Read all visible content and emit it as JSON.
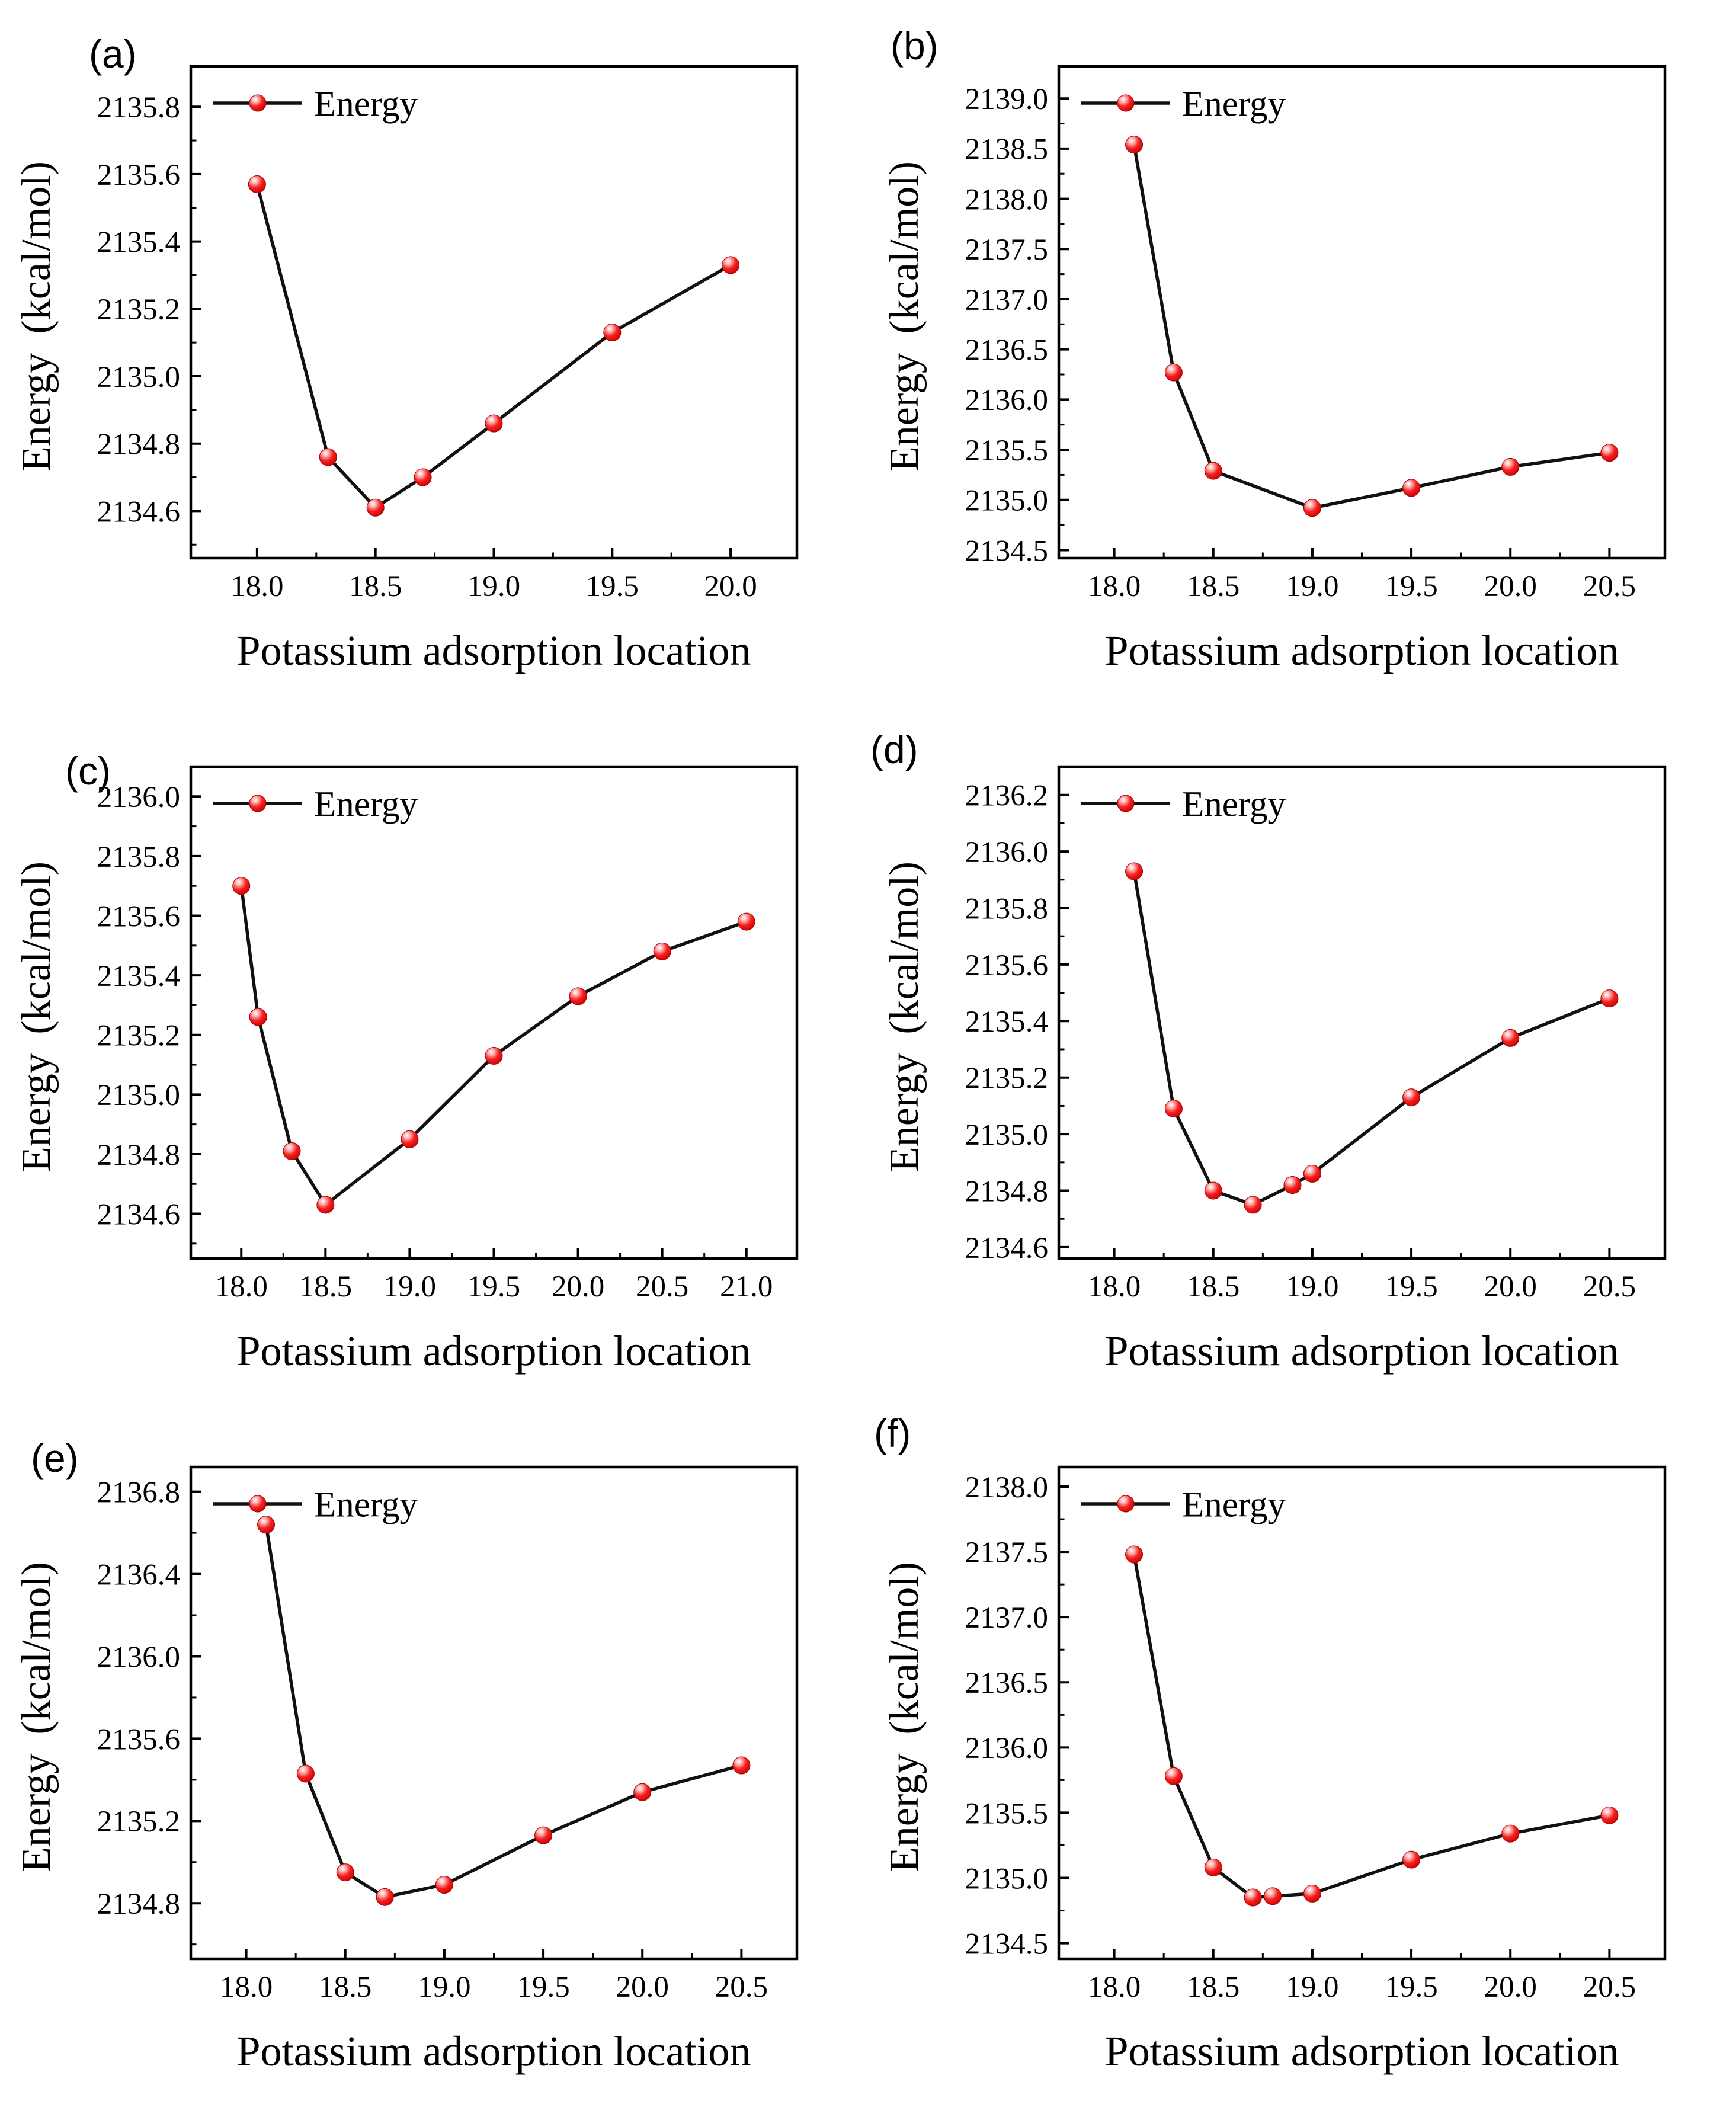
{
  "colors": {
    "marker_fill": "#f52020",
    "marker_edge": "#a30000",
    "line": "#111111",
    "frame": "#000000",
    "text": "#000000"
  },
  "chart_data": [
    {
      "panel_label": "(a)",
      "type": "line",
      "xlabel": "Potassium adsorption location",
      "ylabel": "Energy （kcal/mol）",
      "legend_label": "Energy",
      "legend_position": "top-left",
      "grid": false,
      "series": [
        {
          "name": "Energy",
          "x": [
            18.0,
            18.3,
            18.5,
            18.7,
            19.0,
            19.5,
            20.0
          ],
          "y": [
            2135.57,
            2134.76,
            2134.61,
            2134.7,
            2134.86,
            2135.13,
            2135.33
          ]
        }
      ],
      "x_ticks": [
        18.0,
        18.5,
        19.0,
        19.5,
        20.0
      ],
      "x_tick_labels": [
        "18.0",
        "18.5",
        "19.0",
        "19.5",
        "20.0"
      ],
      "y_ticks": [
        2134.6,
        2134.8,
        2135.0,
        2135.2,
        2135.4,
        2135.6,
        2135.8
      ],
      "y_tick_labels": [
        "2134.6",
        "2134.8",
        "2135.0",
        "2135.2",
        "2135.4",
        "2135.6",
        "2135.8"
      ],
      "xlim": [
        17.72,
        20.28
      ],
      "ylim": [
        2134.46,
        2135.92
      ]
    },
    {
      "panel_label": "(b)",
      "type": "line",
      "xlabel": "Potassium adsorption location",
      "ylabel": "Energy （kcal/mol）",
      "legend_label": "Energy",
      "legend_position": "top-left",
      "grid": false,
      "series": [
        {
          "name": "Energy",
          "x": [
            18.1,
            18.3,
            18.5,
            19.0,
            19.5,
            20.0,
            20.5
          ],
          "y": [
            2138.54,
            2136.27,
            2135.29,
            2134.92,
            2135.12,
            2135.33,
            2135.47
          ]
        }
      ],
      "x_ticks": [
        18.0,
        18.5,
        19.0,
        19.5,
        20.0,
        20.5
      ],
      "x_tick_labels": [
        "18.0",
        "18.5",
        "19.0",
        "19.5",
        "20.0",
        "20.5"
      ],
      "y_ticks": [
        2134.5,
        2135.0,
        2135.5,
        2136.0,
        2136.5,
        2137.0,
        2137.5,
        2138.0,
        2138.5,
        2139.0
      ],
      "y_tick_labels": [
        "2134.5",
        "2135.0",
        "2135.5",
        "2136.0",
        "2136.5",
        "2137.0",
        "2137.5",
        "2138.0",
        "2138.5",
        "2139.0"
      ],
      "xlim": [
        17.72,
        20.78
      ],
      "ylim": [
        2134.42,
        2139.32
      ]
    },
    {
      "panel_label": "(c)",
      "type": "line",
      "xlabel": "Potassium adsorption location",
      "ylabel": "Energy （kcal/mol）",
      "legend_label": "Energy",
      "legend_position": "top-left",
      "grid": false,
      "series": [
        {
          "name": "Energy",
          "x": [
            18.0,
            18.1,
            18.3,
            18.5,
            19.0,
            19.5,
            20.0,
            20.5,
            21.0
          ],
          "y": [
            2135.7,
            2135.26,
            2134.81,
            2134.63,
            2134.85,
            2135.13,
            2135.33,
            2135.48,
            2135.58
          ]
        }
      ],
      "x_ticks": [
        18.0,
        18.5,
        19.0,
        19.5,
        20.0,
        20.5,
        21.0
      ],
      "x_tick_labels": [
        "18.0",
        "18.5",
        "19.0",
        "19.5",
        "20.0",
        "20.5",
        "21.0"
      ],
      "y_ticks": [
        2134.6,
        2134.8,
        2135.0,
        2135.2,
        2135.4,
        2135.6,
        2135.8,
        2136.0
      ],
      "y_tick_labels": [
        "2134.6",
        "2134.8",
        "2135.0",
        "2135.2",
        "2135.4",
        "2135.6",
        "2135.8",
        "2136.0"
      ],
      "xlim": [
        17.7,
        21.3
      ],
      "ylim": [
        2134.45,
        2136.1
      ]
    },
    {
      "panel_label": "(d)",
      "type": "line",
      "xlabel": "Potassium adsorption location",
      "ylabel": "Energy （kcal/mol）",
      "legend_label": "Energy",
      "legend_position": "top-left",
      "grid": false,
      "series": [
        {
          "name": "Energy",
          "x": [
            18.1,
            18.3,
            18.5,
            18.7,
            18.9,
            19.0,
            19.5,
            20.0,
            20.5
          ],
          "y": [
            2135.93,
            2135.09,
            2134.8,
            2134.75,
            2134.82,
            2134.86,
            2135.13,
            2135.34,
            2135.48
          ]
        }
      ],
      "x_ticks": [
        18.0,
        18.5,
        19.0,
        19.5,
        20.0,
        20.5
      ],
      "x_tick_labels": [
        "18.0",
        "18.5",
        "19.0",
        "19.5",
        "20.0",
        "20.5"
      ],
      "y_ticks": [
        2134.6,
        2134.8,
        2135.0,
        2135.2,
        2135.4,
        2135.6,
        2135.8,
        2136.0,
        2136.2
      ],
      "y_tick_labels": [
        "2134.6",
        "2134.8",
        "2135.0",
        "2135.2",
        "2135.4",
        "2135.6",
        "2135.8",
        "2136.0",
        "2136.2"
      ],
      "xlim": [
        17.72,
        20.78
      ],
      "ylim": [
        2134.56,
        2136.3
      ]
    },
    {
      "panel_label": "(e)",
      "type": "line",
      "xlabel": "Potassium adsorption location",
      "ylabel": "Energy （kcal/mol）",
      "legend_label": "Energy",
      "legend_position": "top-left",
      "grid": false,
      "series": [
        {
          "name": "Energy",
          "x": [
            18.1,
            18.3,
            18.5,
            18.7,
            19.0,
            19.5,
            20.0,
            20.5
          ],
          "y": [
            2136.64,
            2135.43,
            2134.95,
            2134.83,
            2134.89,
            2135.13,
            2135.34,
            2135.47
          ]
        }
      ],
      "x_ticks": [
        18.0,
        18.5,
        19.0,
        19.5,
        20.0,
        20.5
      ],
      "x_tick_labels": [
        "18.0",
        "18.5",
        "19.0",
        "19.5",
        "20.0",
        "20.5"
      ],
      "y_ticks": [
        2134.8,
        2135.2,
        2135.6,
        2136.0,
        2136.4,
        2136.8
      ],
      "y_tick_labels": [
        "2134.8",
        "2135.2",
        "2135.6",
        "2136.0",
        "2136.4",
        "2136.8"
      ],
      "xlim": [
        17.72,
        20.78
      ],
      "ylim": [
        2134.53,
        2136.92
      ]
    },
    {
      "panel_label": "(f)",
      "type": "line",
      "xlabel": "Potassium adsorption location",
      "ylabel": "Energy （kcal/mol）",
      "legend_label": "Energy",
      "legend_position": "top-left",
      "grid": false,
      "series": [
        {
          "name": "Energy",
          "x": [
            18.1,
            18.3,
            18.5,
            18.7,
            18.8,
            19.0,
            19.5,
            20.0,
            20.5
          ],
          "y": [
            2137.48,
            2135.78,
            2135.08,
            2134.85,
            2134.86,
            2134.88,
            2135.14,
            2135.34,
            2135.48
          ]
        }
      ],
      "x_ticks": [
        18.0,
        18.5,
        19.0,
        19.5,
        20.0,
        20.5
      ],
      "x_tick_labels": [
        "18.0",
        "18.5",
        "19.0",
        "19.5",
        "20.0",
        "20.5"
      ],
      "y_ticks": [
        2134.5,
        2135.0,
        2135.5,
        2136.0,
        2136.5,
        2137.0,
        2137.5,
        2138.0
      ],
      "y_tick_labels": [
        "2134.5",
        "2135.0",
        "2135.5",
        "2136.0",
        "2136.5",
        "2137.0",
        "2137.5",
        "2138.0"
      ],
      "xlim": [
        17.72,
        20.78
      ],
      "ylim": [
        2134.38,
        2138.15
      ]
    }
  ]
}
